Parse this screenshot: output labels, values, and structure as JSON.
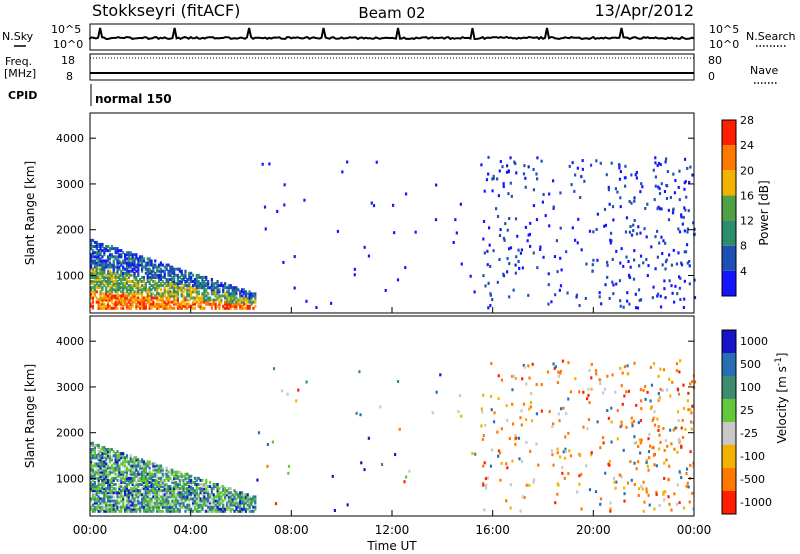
{
  "header": {
    "station": "Stokkseyri (fitACF)",
    "beam": "Beam 02",
    "date": "13/Apr/2012"
  },
  "noise_panel": {
    "left_label": "N.Sky",
    "right_label": "N.Search",
    "left_ticks": [
      "10^5",
      "10^0"
    ],
    "right_ticks": [
      "10^5",
      "10^0"
    ]
  },
  "freq_panel": {
    "left_label_1": "Freq.",
    "left_label_2": "[MHz]",
    "right_label": "Nave",
    "left_ticks": [
      "18",
      "8"
    ],
    "right_ticks": [
      "80",
      "0"
    ]
  },
  "cpid_panel": {
    "label": "CPID",
    "mode": "normal 150"
  },
  "chart_data": [
    {
      "type": "heatmap",
      "title": "Power",
      "ylabel": "Slant Range [km]",
      "y_ticks": [
        "1000",
        "2000",
        "3000",
        "4000"
      ],
      "ylim": [
        180,
        4550
      ],
      "xlim": [
        0,
        24
      ],
      "colorbar_label": "Power [dB]",
      "colorbar_ticks": [
        "4",
        "8",
        "12",
        "16",
        "20",
        "24",
        "28"
      ],
      "colors": [
        "#1414ff",
        "#1e50b4",
        "#2d8c6e",
        "#50a046",
        "#f0b400",
        "#ff7800",
        "#ff1e00"
      ],
      "regions": [
        {
          "t0": 0.0,
          "t1": 6.6,
          "r0": 200,
          "r1": 1800,
          "level": "mixed-strong"
        },
        {
          "t0": 15.5,
          "t1": 24.0,
          "r0": 200,
          "r1": 3500,
          "level": "sparse-weak"
        }
      ]
    },
    {
      "type": "heatmap",
      "title": "Velocity",
      "ylabel": "Slant Range [km]",
      "y_ticks": [
        "1000",
        "2000",
        "3000",
        "4000"
      ],
      "ylim": [
        180,
        4550
      ],
      "xlim": [
        0,
        24
      ],
      "colorbar_label": "Velocity [m s^-1]",
      "colorbar_ticks": [
        "1000",
        "500",
        "100",
        "25",
        "-25",
        "-100",
        "-500",
        "-1000"
      ],
      "colors": [
        "#1414c8",
        "#286eb4",
        "#3c8c6e",
        "#64c83c",
        "#c8c8c8",
        "#f0b400",
        "#ff7800",
        "#ff1e00"
      ],
      "regions": [
        {
          "t0": 0.0,
          "t1": 6.6,
          "r0": 200,
          "r1": 1800,
          "level": "mostly-positive"
        },
        {
          "t0": 15.5,
          "t1": 24.0,
          "r0": 200,
          "r1": 3500,
          "level": "mostly-negative"
        }
      ]
    }
  ],
  "x_axis": {
    "label": "Time UT",
    "ticks": [
      "00:00",
      "04:00",
      "08:00",
      "12:00",
      "16:00",
      "20:00",
      "00:00"
    ]
  }
}
